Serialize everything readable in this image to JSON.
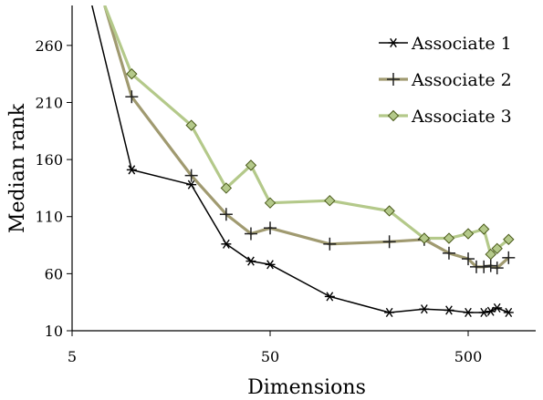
{
  "chart_data": {
    "type": "line",
    "title": "",
    "xlabel": "Dimensions",
    "ylabel": "Median rank",
    "x_scale": "log",
    "xlim": [
      5,
      800
    ],
    "ylim": [
      10,
      295
    ],
    "x_ticks": [
      5,
      50,
      500
    ],
    "x_tick_labels": [
      "5",
      "50",
      "500"
    ],
    "y_ticks": [
      10,
      60,
      110,
      160,
      210,
      260
    ],
    "y_tick_labels": [
      "10",
      "60",
      "110",
      "160",
      "210",
      "260"
    ],
    "grid": false,
    "legend_position": "top-right",
    "series": [
      {
        "name": "Associate 1",
        "color": "#000000",
        "marker": "asterisk",
        "points": [
          [
            6.3,
            295
          ],
          [
            10,
            151
          ],
          [
            20,
            138
          ],
          [
            30,
            86
          ],
          [
            40,
            71
          ],
          [
            50,
            68
          ],
          [
            100,
            40
          ],
          [
            200,
            26
          ],
          [
            300,
            29
          ],
          [
            400,
            28
          ],
          [
            500,
            26
          ],
          [
            600,
            26
          ],
          [
            650,
            27
          ],
          [
            700,
            30
          ],
          [
            800,
            26
          ]
        ]
      },
      {
        "name": "Associate 2",
        "color": "#a09a70",
        "marker": "plus",
        "points": [
          [
            7.3,
            295
          ],
          [
            10,
            215
          ],
          [
            20,
            146
          ],
          [
            30,
            112
          ],
          [
            40,
            95
          ],
          [
            50,
            100
          ],
          [
            100,
            86
          ],
          [
            200,
            88
          ],
          [
            300,
            90
          ],
          [
            400,
            78
          ],
          [
            500,
            73
          ],
          [
            550,
            66
          ],
          [
            600,
            66
          ],
          [
            650,
            67
          ],
          [
            700,
            65
          ],
          [
            800,
            74
          ]
        ]
      },
      {
        "name": "Associate 3",
        "color": "#b4c98a",
        "marker": "diamond",
        "points": [
          [
            7.3,
            295
          ],
          [
            10,
            235
          ],
          [
            20,
            190
          ],
          [
            30,
            135
          ],
          [
            40,
            155
          ],
          [
            50,
            122
          ],
          [
            100,
            124
          ],
          [
            200,
            115
          ],
          [
            300,
            91
          ],
          [
            400,
            91
          ],
          [
            500,
            95
          ],
          [
            600,
            99
          ],
          [
            650,
            77
          ],
          [
            700,
            82
          ],
          [
            800,
            90
          ]
        ]
      }
    ]
  }
}
